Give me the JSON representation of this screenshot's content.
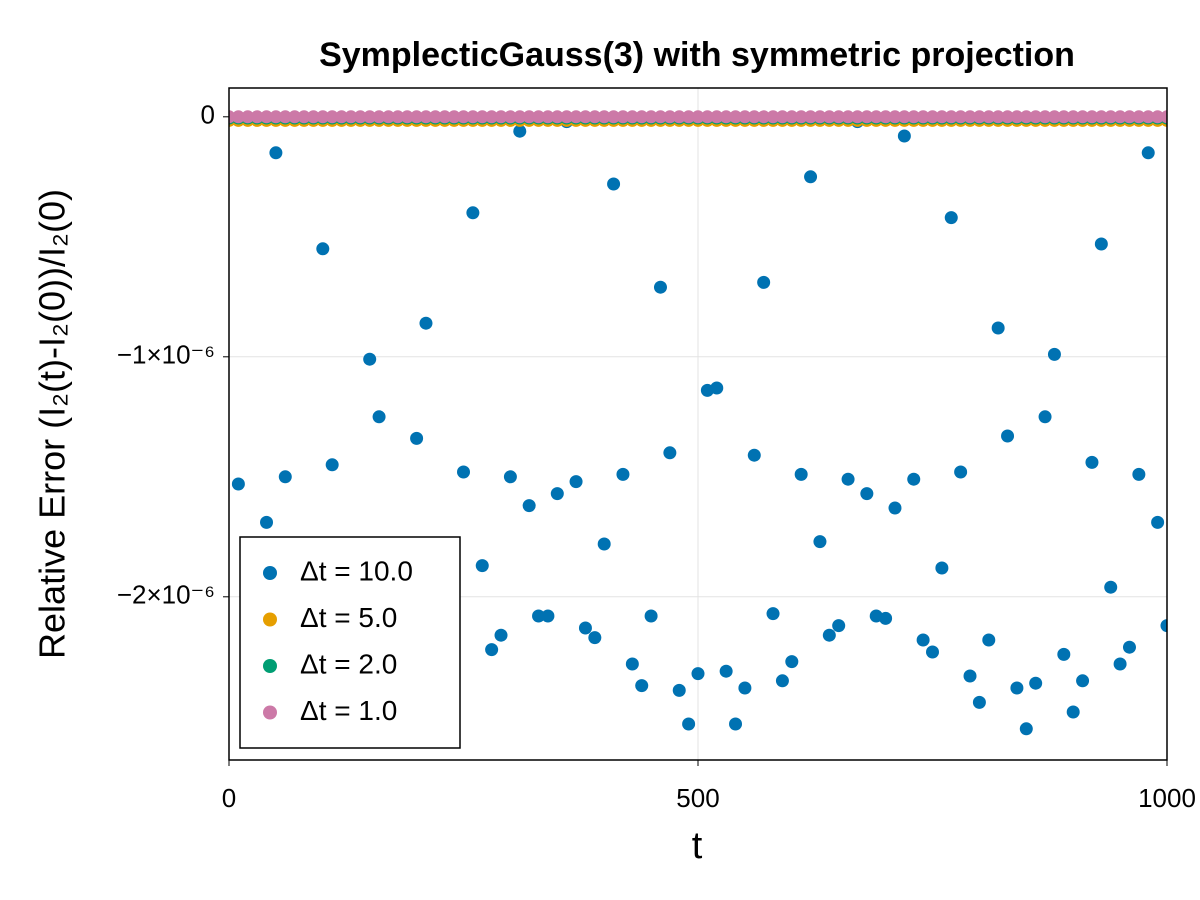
{
  "chart_data": {
    "type": "scatter",
    "title": "SymplecticGauss(3) with symmetric projection",
    "x_label": "t",
    "y_label": "Relative Error (I₂(t)-I₂(0))/I₂(0)",
    "xlim": [
      0,
      1000
    ],
    "xticks": [
      0,
      500,
      1000
    ],
    "ylim": [
      -2.68e-06,
      1.2e-07
    ],
    "yticks": [
      {
        "value": -2e-06,
        "label": "−2×10⁻⁶"
      },
      {
        "value": -1e-06,
        "label": "−1×10⁻⁶"
      },
      0
    ],
    "grid": true,
    "legend": "lower left",
    "series": [
      {
        "name": "Δt = 10.0",
        "color": "#0072b2",
        "x": [
          10,
          40,
          50,
          60,
          100,
          110,
          150,
          160,
          200,
          210,
          250,
          260,
          270,
          280,
          290,
          300,
          310,
          320,
          330,
          340,
          350,
          360,
          370,
          380,
          390,
          400,
          410,
          420,
          430,
          440,
          450,
          460,
          470,
          480,
          490,
          500,
          510,
          520,
          530,
          540,
          550,
          560,
          570,
          580,
          590,
          600,
          610,
          620,
          630,
          640,
          650,
          660,
          670,
          680,
          690,
          700,
          710,
          720,
          730,
          740,
          750,
          760,
          770,
          780,
          790,
          800,
          810,
          820,
          830,
          840,
          850,
          860,
          870,
          880,
          890,
          900,
          910,
          920,
          930,
          940,
          950,
          960,
          970,
          980,
          990,
          1000
        ],
        "values": [
          -1.53e-06,
          -1.69e-06,
          -1.5e-07,
          -1.5e-06,
          -5.5e-07,
          -1.45e-06,
          -1.01e-06,
          -1.25e-06,
          -1.34e-06,
          -8.6e-07,
          -1.48e-06,
          -4e-07,
          -1.87e-06,
          -2.22e-06,
          -2.16e-06,
          -1.5e-06,
          -6e-08,
          -1.62e-06,
          -2.08e-06,
          -2.08e-06,
          -1.57e-06,
          -2e-08,
          -1.52e-06,
          -2.13e-06,
          -2.17e-06,
          -1.78e-06,
          -2.8e-07,
          -1.49e-06,
          -2.28e-06,
          -2.37e-06,
          -2.08e-06,
          -7.1e-07,
          -1.4e-06,
          -2.39e-06,
          -2.53e-06,
          -2.32e-06,
          -1.14e-06,
          -1.13e-06,
          -2.31e-06,
          -2.53e-06,
          -2.38e-06,
          -1.41e-06,
          -6.9e-07,
          -2.07e-06,
          -2.35e-06,
          -2.27e-06,
          -1.49e-06,
          -2.5e-07,
          -1.77e-06,
          -2.16e-06,
          -2.12e-06,
          -1.51e-06,
          -2e-08,
          -1.57e-06,
          -2.08e-06,
          -2.09e-06,
          -1.63e-06,
          -8e-08,
          -1.51e-06,
          -2.18e-06,
          -2.23e-06,
          -1.88e-06,
          -4.2e-07,
          -1.48e-06,
          -2.33e-06,
          -2.44e-06,
          -2.18e-06,
          -8.8e-07,
          -1.33e-06,
          -2.38e-06,
          -2.55e-06,
          -2.36e-06,
          -1.25e-06,
          -9.9e-07,
          -2.24e-06,
          -2.48e-06,
          -2.35e-06,
          -1.44e-06,
          -5.3e-07,
          -1.96e-06,
          -2.28e-06,
          -2.21e-06,
          -1.49e-06,
          -1.5e-07,
          -1.69e-06,
          -2.12e-06
        ]
      },
      {
        "name": "Δt = 5.0",
        "color": "#e69f00",
        "x": [
          0,
          10,
          20,
          30,
          40,
          50,
          60,
          70,
          80,
          90,
          100,
          110,
          120,
          130,
          140,
          150,
          160,
          170,
          180,
          190,
          200,
          210,
          220,
          230,
          240,
          250,
          260,
          270,
          280,
          290,
          300,
          310,
          320,
          330,
          340,
          350,
          360,
          370,
          380,
          390,
          400,
          410,
          420,
          430,
          440,
          450,
          460,
          470,
          480,
          490,
          500,
          510,
          520,
          530,
          540,
          550,
          560,
          570,
          580,
          590,
          600,
          610,
          620,
          630,
          640,
          650,
          660,
          670,
          680,
          690,
          700,
          710,
          720,
          730,
          740,
          750,
          760,
          770,
          780,
          790,
          800,
          810,
          820,
          830,
          840,
          850,
          860,
          870,
          880,
          890,
          900,
          910,
          920,
          930,
          940,
          950,
          960,
          970,
          980,
          990,
          1000
        ],
        "values": [
          -1.5e-08,
          -1.5e-08,
          -1.5e-08,
          -1.5e-08,
          -1.5e-08,
          -1.5e-08,
          -1.5e-08,
          -1.5e-08,
          -1.5e-08,
          -1.5e-08,
          -1.5e-08,
          -1.5e-08,
          -1.5e-08,
          -1.5e-08,
          -1.5e-08,
          -1.5e-08,
          -1.5e-08,
          -1.5e-08,
          -1.5e-08,
          -1.5e-08,
          -1.5e-08,
          -1.5e-08,
          -1.5e-08,
          -1.5e-08,
          -1.5e-08,
          -1.5e-08,
          -1.5e-08,
          -1.5e-08,
          -1.5e-08,
          -1.5e-08,
          -1.5e-08,
          -1.5e-08,
          -1.5e-08,
          -1.5e-08,
          -1.5e-08,
          -1.5e-08,
          -1.5e-08,
          -1.5e-08,
          -1.5e-08,
          -1.5e-08,
          -1.5e-08,
          -1.5e-08,
          -1.5e-08,
          -1.5e-08,
          -1.5e-08,
          -1.5e-08,
          -1.5e-08,
          -1.5e-08,
          -1.5e-08,
          -1.5e-08,
          -1.5e-08,
          -1.5e-08,
          -1.5e-08,
          -1.5e-08,
          -1.5e-08,
          -1.5e-08,
          -1.5e-08,
          -1.5e-08,
          -1.5e-08,
          -1.5e-08,
          -1.5e-08,
          -1.5e-08,
          -1.5e-08,
          -1.5e-08,
          -1.5e-08,
          -1.5e-08,
          -1.5e-08,
          -1.5e-08,
          -1.5e-08,
          -1.5e-08,
          -1.5e-08,
          -1.5e-08,
          -1.5e-08,
          -1.5e-08,
          -1.5e-08,
          -1.5e-08,
          -1.5e-08,
          -1.5e-08,
          -1.5e-08,
          -1.5e-08,
          -1.5e-08,
          -1.5e-08,
          -1.5e-08,
          -1.5e-08,
          -1.5e-08,
          -1.5e-08,
          -1.5e-08,
          -1.5e-08,
          -1.5e-08,
          -1.5e-08,
          -1.5e-08,
          -1.5e-08,
          -1.5e-08,
          -1.5e-08,
          -1.5e-08,
          -1.5e-08,
          -1.5e-08,
          -1.5e-08,
          -1.5e-08,
          -1.5e-08,
          -1.5e-08
        ]
      },
      {
        "name": "Δt = 2.0",
        "color": "#009e73",
        "x": [
          0,
          10,
          20,
          30,
          40,
          50,
          60,
          70,
          80,
          90,
          100,
          110,
          120,
          130,
          140,
          150,
          160,
          170,
          180,
          190,
          200,
          210,
          220,
          230,
          240,
          250,
          260,
          270,
          280,
          290,
          300,
          310,
          320,
          330,
          340,
          350,
          360,
          370,
          380,
          390,
          400,
          410,
          420,
          430,
          440,
          450,
          460,
          470,
          480,
          490,
          500,
          510,
          520,
          530,
          540,
          550,
          560,
          570,
          580,
          590,
          600,
          610,
          620,
          630,
          640,
          650,
          660,
          670,
          680,
          690,
          700,
          710,
          720,
          730,
          740,
          750,
          760,
          770,
          780,
          790,
          800,
          810,
          820,
          830,
          840,
          850,
          860,
          870,
          880,
          890,
          900,
          910,
          920,
          930,
          940,
          950,
          960,
          970,
          980,
          990,
          1000
        ],
        "values": [
          -5e-09,
          -5e-09,
          -5e-09,
          -5e-09,
          -5e-09,
          -5e-09,
          -5e-09,
          -5e-09,
          -5e-09,
          -5e-09,
          -5e-09,
          -5e-09,
          -5e-09,
          -5e-09,
          -5e-09,
          -5e-09,
          -5e-09,
          -5e-09,
          -5e-09,
          -5e-09,
          -5e-09,
          -5e-09,
          -5e-09,
          -5e-09,
          -5e-09,
          -5e-09,
          -5e-09,
          -5e-09,
          -5e-09,
          -5e-09,
          -5e-09,
          -5e-09,
          -5e-09,
          -5e-09,
          -5e-09,
          -5e-09,
          -5e-09,
          -5e-09,
          -5e-09,
          -5e-09,
          -5e-09,
          -5e-09,
          -5e-09,
          -5e-09,
          -5e-09,
          -5e-09,
          -5e-09,
          -5e-09,
          -5e-09,
          -5e-09,
          -5e-09,
          -5e-09,
          -5e-09,
          -5e-09,
          -5e-09,
          -5e-09,
          -5e-09,
          -5e-09,
          -5e-09,
          -5e-09,
          -5e-09,
          -5e-09,
          -5e-09,
          -5e-09,
          -5e-09,
          -5e-09,
          -5e-09,
          -5e-09,
          -5e-09,
          -5e-09,
          -5e-09,
          -5e-09,
          -5e-09,
          -5e-09,
          -5e-09,
          -5e-09,
          -5e-09,
          -5e-09,
          -5e-09,
          -5e-09,
          -5e-09,
          -5e-09,
          -5e-09,
          -5e-09,
          -5e-09,
          -5e-09,
          -5e-09,
          -5e-09,
          -5e-09,
          -5e-09,
          -5e-09,
          -5e-09,
          -5e-09,
          -5e-09,
          -5e-09,
          -5e-09,
          -5e-09,
          -5e-09,
          -5e-09,
          -5e-09,
          -5e-09
        ]
      },
      {
        "name": "Δt = 1.0",
        "color": "#cc79a7",
        "x": [
          0,
          10,
          20,
          30,
          40,
          50,
          60,
          70,
          80,
          90,
          100,
          110,
          120,
          130,
          140,
          150,
          160,
          170,
          180,
          190,
          200,
          210,
          220,
          230,
          240,
          250,
          260,
          270,
          280,
          290,
          300,
          310,
          320,
          330,
          340,
          350,
          360,
          370,
          380,
          390,
          400,
          410,
          420,
          430,
          440,
          450,
          460,
          470,
          480,
          490,
          500,
          510,
          520,
          530,
          540,
          550,
          560,
          570,
          580,
          590,
          600,
          610,
          620,
          630,
          640,
          650,
          660,
          670,
          680,
          690,
          700,
          710,
          720,
          730,
          740,
          750,
          760,
          770,
          780,
          790,
          800,
          810,
          820,
          830,
          840,
          850,
          860,
          870,
          880,
          890,
          900,
          910,
          920,
          930,
          940,
          950,
          960,
          970,
          980,
          990,
          1000
        ],
        "values": [
          0,
          0,
          0,
          0,
          0,
          0,
          0,
          0,
          0,
          0,
          0,
          0,
          0,
          0,
          0,
          0,
          0,
          0,
          0,
          0,
          0,
          0,
          0,
          0,
          0,
          0,
          0,
          0,
          0,
          0,
          0,
          0,
          0,
          0,
          0,
          0,
          0,
          0,
          0,
          0,
          0,
          0,
          0,
          0,
          0,
          0,
          0,
          0,
          0,
          0,
          0,
          0,
          0,
          0,
          0,
          0,
          0,
          0,
          0,
          0,
          0,
          0,
          0,
          0,
          0,
          0,
          0,
          0,
          0,
          0,
          0,
          0,
          0,
          0,
          0,
          0,
          0,
          0,
          0,
          0,
          0,
          0,
          0,
          0,
          0,
          0,
          0,
          0,
          0,
          0,
          0,
          0,
          0,
          0,
          0,
          0,
          0,
          0,
          0,
          0,
          0
        ]
      }
    ]
  }
}
